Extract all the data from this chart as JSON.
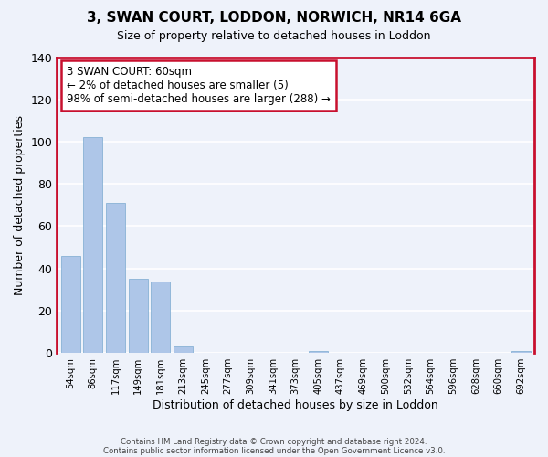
{
  "title": "3, SWAN COURT, LODDON, NORWICH, NR14 6GA",
  "subtitle": "Size of property relative to detached houses in Loddon",
  "xlabel": "Distribution of detached houses by size in Loddon",
  "ylabel": "Number of detached properties",
  "categories": [
    "54sqm",
    "86sqm",
    "117sqm",
    "149sqm",
    "181sqm",
    "213sqm",
    "245sqm",
    "277sqm",
    "309sqm",
    "341sqm",
    "373sqm",
    "405sqm",
    "437sqm",
    "469sqm",
    "500sqm",
    "532sqm",
    "564sqm",
    "596sqm",
    "628sqm",
    "660sqm",
    "692sqm"
  ],
  "values": [
    46,
    102,
    71,
    35,
    34,
    3,
    0,
    0,
    0,
    0,
    0,
    1,
    0,
    0,
    0,
    0,
    0,
    0,
    0,
    0,
    1
  ],
  "bar_color": "#aec6e8",
  "bar_edge_color": "#7aaad0",
  "highlight_color": "#c8102e",
  "ylim": [
    0,
    140
  ],
  "yticks": [
    0,
    20,
    40,
    60,
    80,
    100,
    120,
    140
  ],
  "annotation_box_text": "3 SWAN COURT: 60sqm\n← 2% of detached houses are smaller (5)\n98% of semi-detached houses are larger (288) →",
  "footer_line1": "Contains HM Land Registry data © Crown copyright and database right 2024.",
  "footer_line2": "Contains public sector information licensed under the Open Government Licence v3.0.",
  "background_color": "#eef2fa",
  "grid_color": "#ffffff",
  "box_color_face": "#ffffff",
  "box_color_edge": "#c8102e"
}
